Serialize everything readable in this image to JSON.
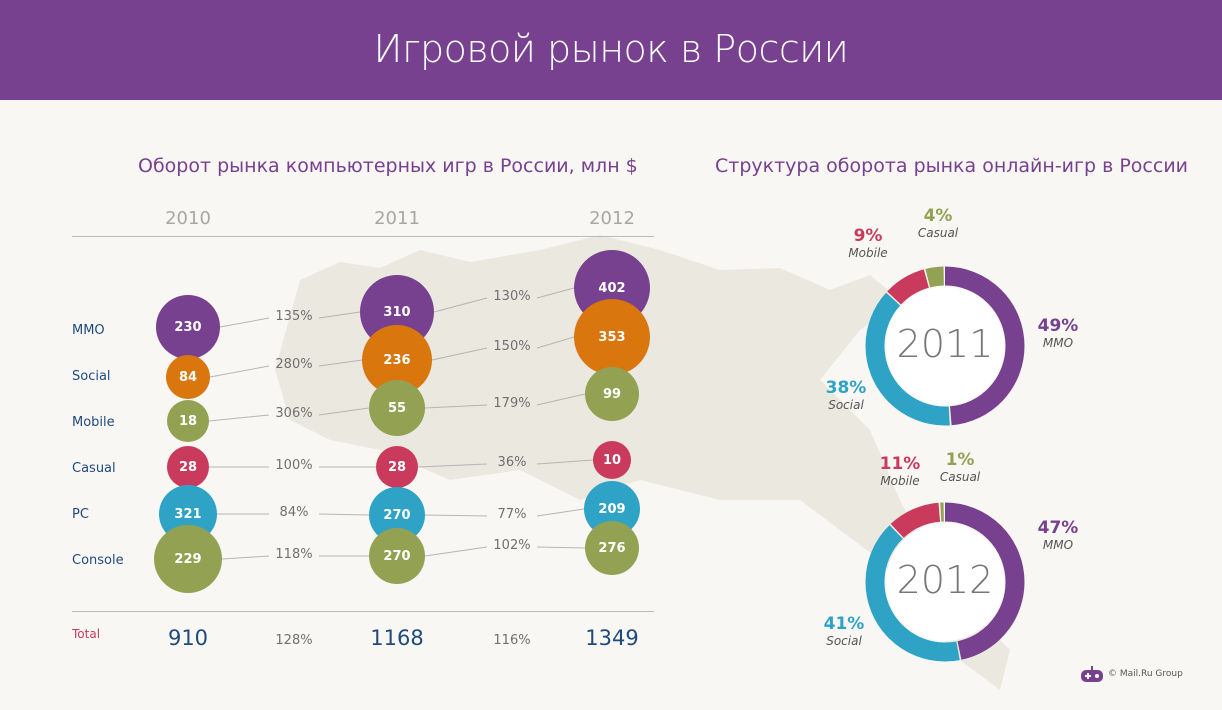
{
  "header": {
    "title": "Игровой рынок в России"
  },
  "chart_data": [
    {
      "type": "bubble",
      "title": "Оборот рынка компьютерных игр в России, млн $",
      "years": [
        "2010",
        "2011",
        "2012"
      ],
      "categories": [
        "MMO",
        "Social",
        "Mobile",
        "Casual",
        "PC",
        "Console"
      ],
      "colors": [
        "#77418f",
        "#d9760e",
        "#93a153",
        "#c93a5c",
        "#2fa3c6",
        "#93a153"
      ],
      "values": [
        [
          230,
          310,
          402
        ],
        [
          84,
          236,
          353
        ],
        [
          18,
          55,
          99
        ],
        [
          28,
          28,
          10
        ],
        [
          321,
          270,
          209
        ],
        [
          229,
          270,
          276
        ]
      ],
      "growth": [
        [
          "135%",
          "130%"
        ],
        [
          "280%",
          "150%"
        ],
        [
          "306%",
          "179%"
        ],
        [
          "100%",
          "36%"
        ],
        [
          "84%",
          "77%"
        ],
        [
          "118%",
          "102%"
        ]
      ],
      "total_label": "Total",
      "totals": [
        "910",
        "1168",
        "1349"
      ],
      "total_growth": [
        "128%",
        "116%"
      ]
    },
    {
      "type": "pie",
      "title": "Структура оборота рынка онлайн-игр в России",
      "donuts": [
        {
          "year": "2011",
          "slices": [
            {
              "name": "MMO",
              "value": 49,
              "label": "49%",
              "color": "#77418f"
            },
            {
              "name": "Social",
              "value": 38,
              "label": "38%",
              "color": "#2fa3c6"
            },
            {
              "name": "Mobile",
              "value": 9,
              "label": "9%",
              "color": "#c93a5c"
            },
            {
              "name": "Casual",
              "value": 4,
              "label": "4%",
              "color": "#93a153"
            }
          ]
        },
        {
          "year": "2012",
          "slices": [
            {
              "name": "MMO",
              "value": 47,
              "label": "47%",
              "color": "#77418f"
            },
            {
              "name": "Social",
              "value": 41,
              "label": "41%",
              "color": "#2fa3c6"
            },
            {
              "name": "Mobile",
              "value": 11,
              "label": "11%",
              "color": "#c93a5c"
            },
            {
              "name": "Casual",
              "value": 1,
              "label": "1%",
              "color": "#93a153"
            }
          ]
        }
      ]
    }
  ],
  "footer": {
    "copyright": "© Mail.Ru Group",
    "icon": "gamepad-icon"
  }
}
